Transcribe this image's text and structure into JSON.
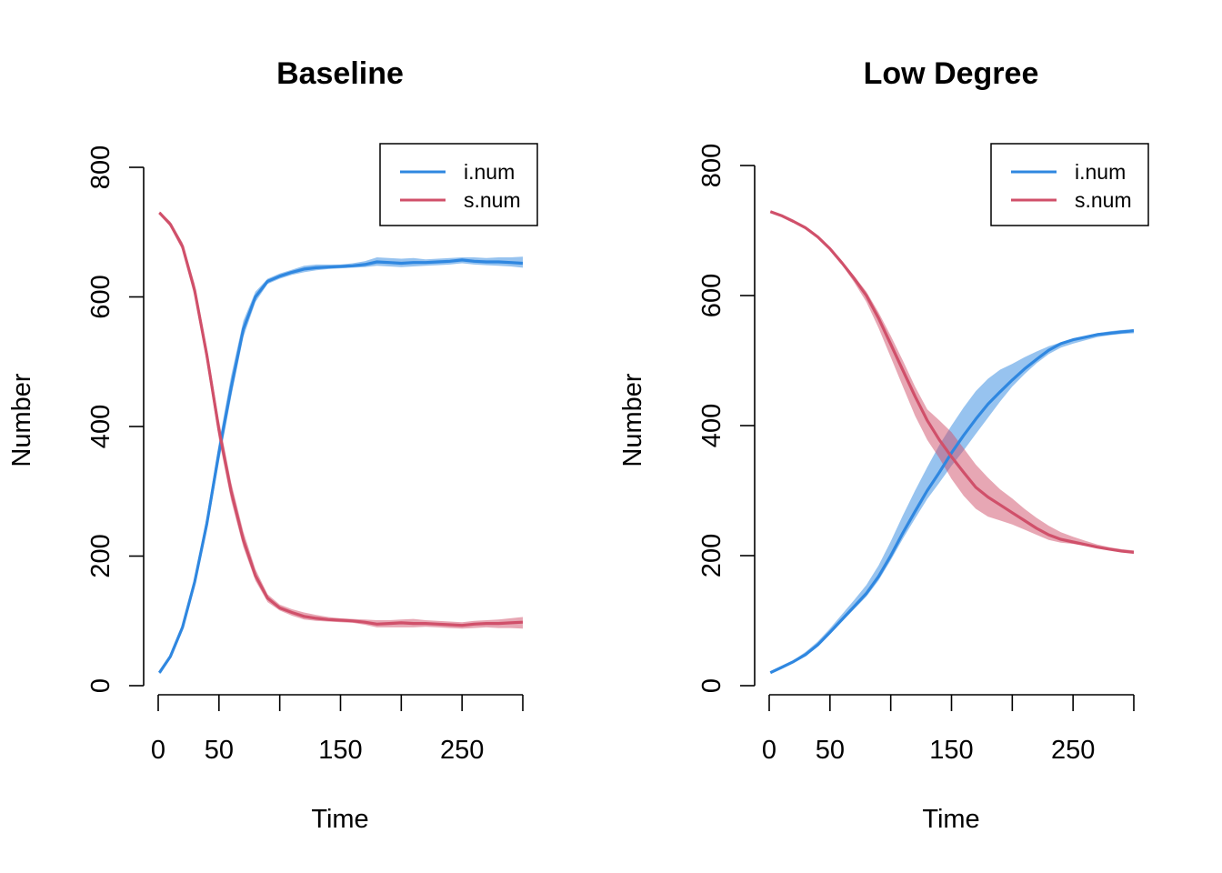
{
  "colors": {
    "i_num": "#2F87E0",
    "s_num": "#D0506A"
  },
  "chart_data": [
    {
      "type": "line",
      "title": "Baseline",
      "xlabel": "Time",
      "ylabel": "Number",
      "xlim": [
        0,
        300
      ],
      "ylim": [
        0,
        800
      ],
      "x_ticks": [
        0,
        50,
        100,
        150,
        200,
        250,
        300
      ],
      "x_tick_labels": [
        "0",
        "50",
        "",
        "150",
        "",
        "250",
        ""
      ],
      "y_ticks": [
        0,
        200,
        400,
        600,
        800
      ],
      "y_tick_labels": [
        "0",
        "200",
        "400",
        "600",
        "800"
      ],
      "legend": {
        "position": "top-right",
        "entries": [
          "i.num",
          "s.num"
        ]
      },
      "x": [
        1,
        10,
        20,
        30,
        40,
        50,
        60,
        70,
        80,
        90,
        100,
        110,
        120,
        130,
        140,
        150,
        160,
        170,
        180,
        190,
        200,
        210,
        220,
        230,
        240,
        250,
        260,
        270,
        280,
        290,
        300
      ],
      "series": [
        {
          "name": "i.num",
          "values": [
            20,
            45,
            90,
            160,
            250,
            360,
            460,
            550,
            600,
            624,
            632,
            638,
            643,
            645,
            646,
            647,
            648,
            650,
            654,
            653,
            652,
            653,
            653,
            654,
            655,
            657,
            655,
            654,
            654,
            653,
            652
          ],
          "lower": [
            18,
            43,
            86,
            152,
            240,
            345,
            445,
            538,
            592,
            620,
            628,
            634,
            638,
            641,
            643,
            644,
            645,
            646,
            648,
            647,
            646,
            647,
            648,
            649,
            650,
            652,
            650,
            649,
            648,
            647,
            645
          ],
          "upper": [
            22,
            48,
            95,
            168,
            262,
            375,
            478,
            563,
            608,
            628,
            636,
            642,
            648,
            650,
            650,
            650,
            652,
            655,
            661,
            660,
            659,
            660,
            658,
            659,
            660,
            661,
            661,
            660,
            661,
            661,
            662
          ]
        },
        {
          "name": "s.num",
          "values": [
            730,
            712,
            678,
            610,
            510,
            395,
            300,
            225,
            170,
            135,
            120,
            113,
            107,
            104,
            102,
            101,
            100,
            98,
            95,
            96,
            97,
            96,
            96,
            95,
            94,
            93,
            95,
            96,
            96,
            97,
            98
          ],
          "lower": [
            728,
            708,
            672,
            600,
            498,
            380,
            286,
            214,
            162,
            129,
            116,
            108,
            102,
            100,
            99,
            98,
            97,
            94,
            90,
            90,
            90,
            90,
            91,
            90,
            89,
            88,
            89,
            90,
            89,
            89,
            88
          ],
          "upper": [
            732,
            716,
            684,
            620,
            522,
            410,
            314,
            238,
            180,
            141,
            125,
            118,
            113,
            109,
            106,
            104,
            103,
            102,
            101,
            101,
            102,
            103,
            101,
            100,
            99,
            98,
            100,
            101,
            102,
            104,
            106
          ]
        }
      ]
    },
    {
      "type": "line",
      "title": "Low Degree",
      "xlabel": "Time",
      "ylabel": "Number",
      "xlim": [
        0,
        300
      ],
      "ylim": [
        0,
        800
      ],
      "x_ticks": [
        0,
        50,
        100,
        150,
        200,
        250,
        300
      ],
      "x_tick_labels": [
        "0",
        "50",
        "",
        "150",
        "",
        "250",
        ""
      ],
      "y_ticks": [
        0,
        200,
        400,
        600,
        800
      ],
      "y_tick_labels": [
        "0",
        "200",
        "400",
        "600",
        "800"
      ],
      "legend": {
        "position": "top-right",
        "entries": [
          "i.num",
          "s.num"
        ]
      },
      "x": [
        1,
        10,
        20,
        30,
        40,
        50,
        60,
        70,
        80,
        90,
        100,
        110,
        120,
        130,
        140,
        150,
        160,
        170,
        180,
        190,
        200,
        210,
        220,
        230,
        240,
        250,
        260,
        270,
        280,
        290,
        300
      ],
      "series": [
        {
          "name": "i.num",
          "values": [
            20,
            28,
            37,
            48,
            63,
            82,
            102,
            122,
            142,
            168,
            200,
            235,
            268,
            300,
            328,
            358,
            385,
            410,
            433,
            452,
            470,
            487,
            502,
            516,
            526,
            532,
            536,
            540,
            542,
            544,
            546
          ],
          "lower": [
            19,
            27,
            35,
            45,
            60,
            79,
            99,
            118,
            137,
            162,
            193,
            226,
            257,
            287,
            312,
            338,
            362,
            387,
            412,
            437,
            460,
            479,
            496,
            510,
            520,
            526,
            531,
            536,
            539,
            541,
            542
          ],
          "upper": [
            21,
            29,
            39,
            52,
            68,
            88,
            110,
            132,
            155,
            185,
            222,
            262,
            300,
            336,
            370,
            400,
            428,
            453,
            472,
            486,
            495,
            505,
            514,
            522,
            528,
            534,
            538,
            542,
            545,
            547,
            548
          ]
        },
        {
          "name": "s.num",
          "values": [
            729,
            723,
            714,
            704,
            690,
            672,
            650,
            626,
            600,
            565,
            525,
            485,
            445,
            408,
            378,
            352,
            328,
            305,
            290,
            278,
            266,
            254,
            242,
            232,
            225,
            221,
            217,
            213,
            210,
            207,
            205
          ],
          "lower": [
            728,
            722,
            712,
            702,
            688,
            670,
            647,
            620,
            590,
            550,
            505,
            460,
            415,
            378,
            350,
            318,
            292,
            272,
            260,
            254,
            248,
            240,
            232,
            224,
            220,
            218,
            215,
            212,
            209,
            206,
            203
          ],
          "upper": [
            730,
            724,
            716,
            706,
            692,
            675,
            653,
            630,
            606,
            574,
            538,
            500,
            460,
            425,
            408,
            390,
            365,
            340,
            320,
            302,
            288,
            272,
            258,
            246,
            236,
            229,
            223,
            217,
            213,
            210,
            208
          ]
        }
      ]
    }
  ]
}
